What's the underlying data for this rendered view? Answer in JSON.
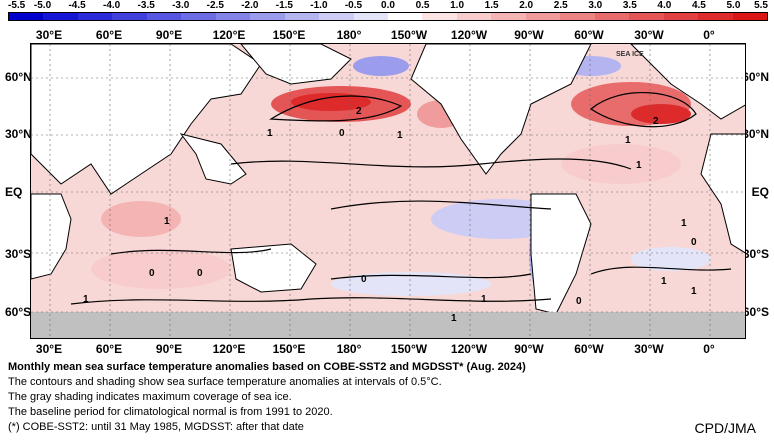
{
  "colorbar": {
    "ticks": [
      "-5.5",
      "-5.0",
      "-4.5",
      "-4.0",
      "-3.5",
      "-3.0",
      "-2.5",
      "-2.0",
      "-1.5",
      "-1.0",
      "-0.5",
      "0.0",
      "0.5",
      "1.0",
      "1.5",
      "2.0",
      "2.5",
      "3.0",
      "3.5",
      "4.0",
      "4.5",
      "5.0",
      "5.5"
    ],
    "colors": [
      "#0000cc",
      "#1515d6",
      "#2a2ad9",
      "#4040dd",
      "#5656e0",
      "#6c6ce4",
      "#8484e8",
      "#9c9cec",
      "#b4b4f0",
      "#ccccf4",
      "#e4e4f8",
      "#ffffff",
      "#fce4e4",
      "#f8cccc",
      "#f4b4b4",
      "#f09c9c",
      "#ec8484",
      "#e86c6c",
      "#e45656",
      "#e04040",
      "#dd2a2a",
      "#d91515"
    ]
  },
  "longitudes": [
    "30°E",
    "60°E",
    "90°E",
    "120°E",
    "150°E",
    "180°",
    "150°W",
    "120°W",
    "90°W",
    "60°W",
    "30°W",
    "0°"
  ],
  "latitudes": [
    "60°N",
    "30°N",
    "EQ",
    "30°S",
    "60°S"
  ],
  "map": {
    "sea_ice_label": "SEA ICE",
    "contour_labels": [
      "2",
      "1",
      "0",
      "1",
      "1",
      "2",
      "1",
      "1",
      "1",
      "0",
      "1",
      "0",
      "0",
      "1",
      "0",
      "1",
      "1",
      "0",
      "1"
    ]
  },
  "caption": {
    "title": "Monthly mean sea surface temperature anomalies based on COBE-SST2 and MGDSST* (Aug. 2024)",
    "lines": [
      "The contours and shading show sea surface temperature anomalies at intervals of 0.5°C.",
      "The gray shading indicates maximum coverage of sea ice.",
      "The baseline period for climatological normal is from 1991 to 2020.",
      "(*) COBE-SST2: until 31 May 1985, MGDSST: after that date"
    ]
  },
  "credit": "CPD/JMA"
}
